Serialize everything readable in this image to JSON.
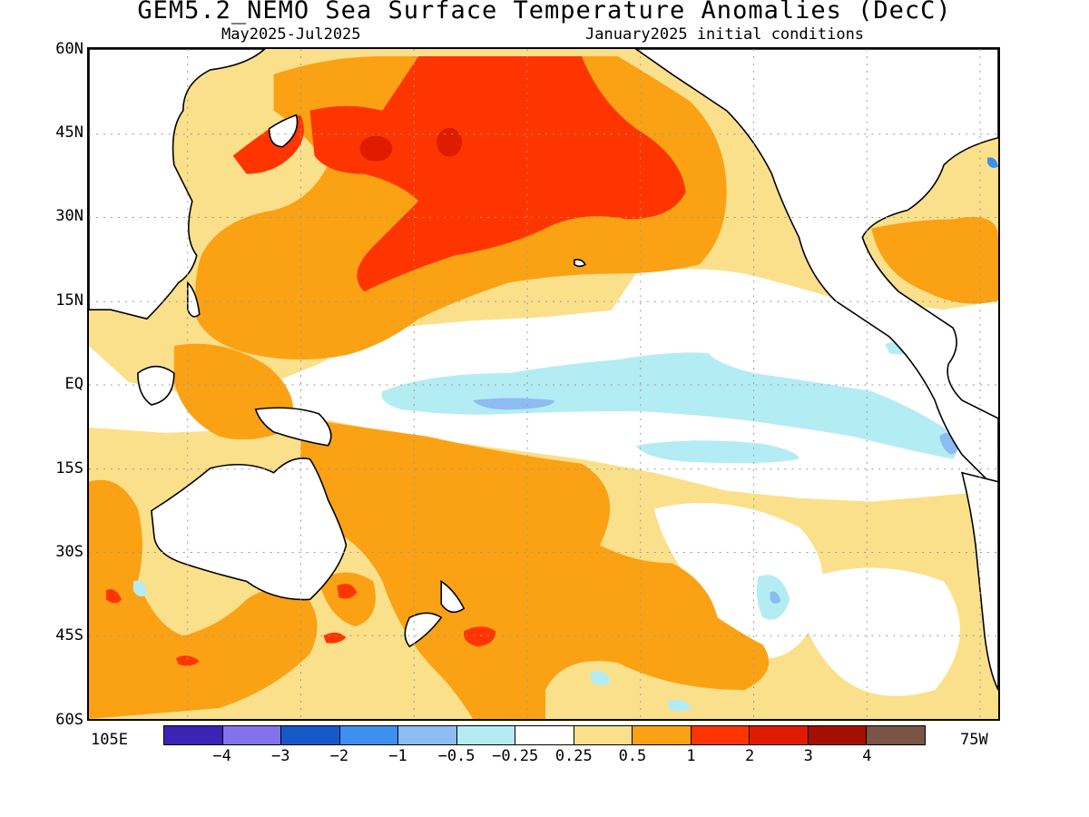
{
  "title": "GEM5.2_NEMO Sea Surface Temperature Anomalies (DecC)",
  "subtitle_left": "May2025-Jul2025",
  "subtitle_right": "January2025 initial conditions",
  "lat_labels": [
    "60N",
    "45N",
    "30N",
    "15N",
    "EQ",
    "15S",
    "30S",
    "45S",
    "60S"
  ],
  "lon_labels": {
    "left": "105E",
    "right": "75W"
  },
  "colorbar": {
    "colors": [
      "#3a24b5",
      "#8472ec",
      "#1559c8",
      "#3d8ff0",
      "#8dbcf3",
      "#b4ecf4",
      "#ffffff",
      "#fbe08b",
      "#fba114",
      "#ff3500",
      "#e01c00",
      "#a50f00",
      "#7a5444"
    ],
    "labels": [
      "−4",
      "−3",
      "−2",
      "−1",
      "−0.5",
      "−0.25",
      "0.25",
      "0.5",
      "1",
      "2",
      "3",
      "4"
    ]
  },
  "map": {
    "region": "Pacific Ocean",
    "lat_range": [
      -60,
      60
    ],
    "lon_range": [
      "105E",
      "75W"
    ],
    "grid": "dotted",
    "land_color": "#ffffff",
    "anomaly_regions": [
      {
        "name": "north-pacific-warm-core",
        "level": "2"
      },
      {
        "name": "north-pacific-warm",
        "level": "1"
      },
      {
        "name": "equatorial-cool-tongue",
        "level": "-0.5"
      },
      {
        "name": "equatorial-cool-core",
        "level": "-1"
      },
      {
        "name": "south-pacific-warm",
        "level": "1"
      },
      {
        "name": "tasman-warm-spot",
        "level": "2"
      }
    ]
  }
}
